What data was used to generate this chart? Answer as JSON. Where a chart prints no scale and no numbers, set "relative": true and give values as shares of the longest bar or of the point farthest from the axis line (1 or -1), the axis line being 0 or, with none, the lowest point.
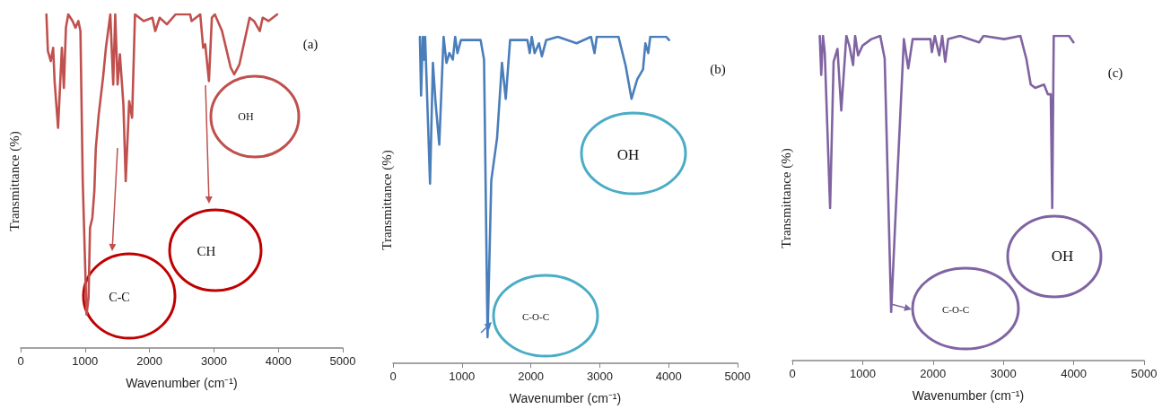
{
  "chart_data": [
    {
      "type": "line",
      "xlabel": "Wavenumber (cm⁻¹)",
      "ylabel": "Transmittance (%)",
      "xlim": [
        0,
        5000
      ],
      "xticks": [
        0,
        1000,
        2000,
        3000,
        4000,
        5000
      ],
      "relative": true,
      "tick_labels": "x",
      "marker": "none",
      "grid": false,
      "series": [
        {
          "color": "#c0504d",
          "x": [
            400,
            423,
            468,
            505,
            527,
            581,
            613,
            640,
            671,
            703,
            739,
            806,
            851,
            896,
            928,
            964,
            1023,
            1054,
            1077,
            1113,
            1144,
            1167,
            1212,
            1279,
            1324,
            1392,
            1437,
            1468,
            1505,
            1541,
            1595,
            1631,
            1685,
            1730,
            1775,
            1910,
            2045,
            2090,
            2158,
            2270,
            2405,
            2631,
            2653,
            2788,
            2833,
            2865,
            2923,
            2968,
            3014,
            3126,
            3261,
            3315,
            3396,
            3554,
            3622,
            3712,
            3757,
            3847,
            3982
          ],
          "values": [
            1.0,
            0.89,
            0.86,
            0.9,
            0.8,
            0.66,
            0.79,
            0.9,
            0.78,
            0.96,
            1.0,
            0.98,
            0.96,
            0.98,
            0.95,
            0.5,
            0.1,
            0.15,
            0.36,
            0.39,
            0.47,
            0.6,
            0.7,
            0.81,
            0.9,
            1.0,
            0.79,
            1.0,
            0.79,
            0.88,
            0.73,
            0.5,
            0.74,
            0.69,
            1.0,
            0.98,
            0.99,
            0.95,
            0.99,
            0.97,
            1.0,
            1.0,
            0.98,
            1.0,
            0.9,
            0.91,
            0.8,
            0.99,
            1.0,
            0.95,
            0.84,
            0.82,
            0.85,
            0.99,
            0.98,
            0.95,
            0.99,
            0.98,
            1.0
          ]
        }
      ],
      "annotations": [
        "(a)",
        "OH",
        "CH",
        "C-C"
      ]
    },
    {
      "type": "line",
      "xlabel": "Wavenumber (cm⁻¹)",
      "ylabel": "Transmittance (%)",
      "xlim": [
        0,
        5000
      ],
      "xticks": [
        0,
        1000,
        2000,
        3000,
        4000,
        5000
      ],
      "relative": true,
      "tick_labels": "x",
      "marker": "none",
      "grid": false,
      "series": [
        {
          "color": "#4a7ebb",
          "x": [
            390,
            407,
            432,
            449,
            466,
            537,
            579,
            617,
            671,
            734,
            776,
            818,
            868,
            902,
            935,
            986,
            1195,
            1271,
            1321,
            1372,
            1426,
            1510,
            1581,
            1636,
            1699,
            1950,
            1984,
            2013,
            2055,
            2118,
            2160,
            2223,
            2391,
            2664,
            2873,
            2924,
            2957,
            3272,
            3377,
            3461,
            3544,
            3628,
            3662,
            3704,
            3733,
            3964,
            4006
          ],
          "values": [
            1.0,
            0.82,
            1.0,
            0.93,
            1.0,
            0.55,
            0.92,
            0.8,
            0.67,
            1.0,
            0.92,
            0.95,
            0.93,
            1.0,
            0.95,
            0.99,
            0.99,
            0.99,
            0.93,
            0.08,
            0.56,
            0.69,
            0.92,
            0.81,
            0.99,
            0.99,
            0.95,
            1.0,
            0.95,
            0.98,
            0.94,
            0.99,
            1.0,
            0.98,
            1.0,
            0.95,
            1.0,
            1.0,
            0.91,
            0.81,
            0.87,
            0.9,
            0.98,
            0.95,
            1.0,
            1.0,
            0.99
          ]
        }
      ],
      "annotations": [
        "(b)",
        "OH",
        "C-O-C"
      ]
    },
    {
      "type": "line",
      "xlabel": "Wavenumber (cm⁻¹)",
      "ylabel": "Transmittance (%)",
      "xlim": [
        0,
        5000
      ],
      "xticks": [
        0,
        1000,
        2000,
        3000,
        4000,
        5000
      ],
      "relative": true,
      "tick_labels": "x",
      "marker": "none",
      "grid": false,
      "series": [
        {
          "color": "#8064a2",
          "x": [
            390,
            411,
            436,
            461,
            537,
            587,
            642,
            696,
            768,
            810,
            864,
            893,
            935,
            998,
            1124,
            1250,
            1313,
            1405,
            1481,
            1586,
            1648,
            1711,
            1963,
            1984,
            2026,
            2089,
            2131,
            2173,
            2215,
            2383,
            2655,
            2718,
            3012,
            3242,
            3326,
            3389,
            3452,
            3578,
            3633,
            3674,
            3695,
            3716,
            3934,
            3997
          ],
          "values": [
            1.0,
            0.88,
            1.0,
            0.95,
            0.47,
            0.92,
            0.96,
            0.77,
            1.0,
            0.97,
            0.91,
            1.0,
            0.94,
            0.97,
            0.99,
            1.0,
            0.93,
            0.15,
            0.51,
            0.99,
            0.9,
            0.99,
            0.99,
            0.95,
            1.0,
            0.94,
            1.0,
            0.92,
            0.99,
            1.0,
            0.98,
            1.0,
            0.99,
            1.0,
            0.93,
            0.85,
            0.84,
            0.85,
            0.82,
            0.82,
            0.47,
            1.0,
            1.0,
            0.98
          ]
        }
      ],
      "annotations": [
        "(c)",
        "OH",
        "C-O-C"
      ]
    }
  ]
}
